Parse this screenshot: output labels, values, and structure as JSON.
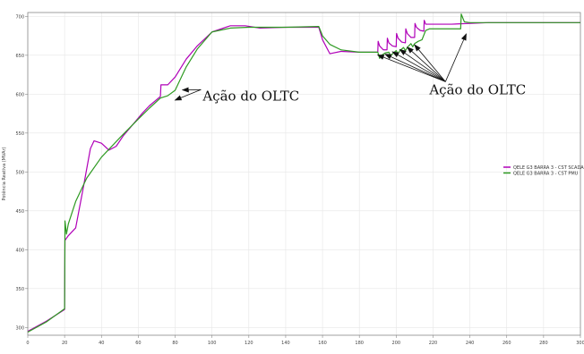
{
  "chart_data": {
    "type": "line",
    "title": "",
    "xlabel": "",
    "ylabel": "Potência Reativa (MVAr)",
    "xlim": [
      0,
      300
    ],
    "ylim": [
      290,
      705
    ],
    "x_ticks": [
      0,
      20,
      40,
      60,
      80,
      100,
      120,
      140,
      160,
      180,
      200,
      220,
      240,
      260,
      280,
      300
    ],
    "y_ticks": [
      300,
      350,
      400,
      450,
      500,
      550,
      600,
      650,
      700
    ],
    "grid": true,
    "legend_position": "right",
    "series": [
      {
        "name": "QELE G3 BARRA 3 - CST SCADA",
        "color": "#b000b8",
        "points": [
          [
            0,
            295
          ],
          [
            10,
            308
          ],
          [
            20,
            323
          ],
          [
            20.2,
            412
          ],
          [
            22,
            418
          ],
          [
            26,
            428
          ],
          [
            30,
            478
          ],
          [
            34,
            530
          ],
          [
            36,
            540
          ],
          [
            40,
            537
          ],
          [
            44,
            528
          ],
          [
            48,
            533
          ],
          [
            52,
            547
          ],
          [
            56,
            558
          ],
          [
            62,
            575
          ],
          [
            66,
            585
          ],
          [
            72,
            597
          ],
          [
            72.3,
            612
          ],
          [
            76,
            612
          ],
          [
            80,
            622
          ],
          [
            86,
            645
          ],
          [
            92,
            662
          ],
          [
            100,
            680
          ],
          [
            110,
            688
          ],
          [
            118,
            688
          ],
          [
            126,
            685
          ],
          [
            140,
            686
          ],
          [
            158,
            686
          ],
          [
            160,
            670
          ],
          [
            164,
            652
          ],
          [
            170,
            655
          ],
          [
            180,
            654
          ],
          [
            190,
            654
          ],
          [
            190.2,
            668
          ],
          [
            191,
            662
          ],
          [
            193,
            657
          ],
          [
            195,
            657
          ],
          [
            195.2,
            672
          ],
          [
            196,
            666
          ],
          [
            198,
            662
          ],
          [
            200,
            661
          ],
          [
            200.2,
            678
          ],
          [
            201,
            672
          ],
          [
            203,
            667
          ],
          [
            205,
            666
          ],
          [
            205.2,
            684
          ],
          [
            206,
            678
          ],
          [
            208,
            673
          ],
          [
            210,
            673
          ],
          [
            210.2,
            691
          ],
          [
            211,
            686
          ],
          [
            213,
            682
          ],
          [
            215,
            681
          ],
          [
            215.2,
            695
          ],
          [
            216,
            690
          ],
          [
            218,
            690
          ],
          [
            230,
            690
          ],
          [
            250,
            692
          ],
          [
            300,
            692
          ]
        ]
      },
      {
        "name": "QELE G3 BARRA 3 - CST PMU",
        "color": "#2e9a22",
        "points": [
          [
            0,
            294
          ],
          [
            10,
            307
          ],
          [
            20,
            324
          ],
          [
            20.2,
            437
          ],
          [
            21,
            420
          ],
          [
            22,
            433
          ],
          [
            26,
            462
          ],
          [
            32,
            492
          ],
          [
            40,
            519
          ],
          [
            50,
            544
          ],
          [
            60,
            568
          ],
          [
            66,
            582
          ],
          [
            72,
            595
          ],
          [
            76,
            598
          ],
          [
            80,
            605
          ],
          [
            82,
            615
          ],
          [
            86,
            635
          ],
          [
            92,
            658
          ],
          [
            100,
            680
          ],
          [
            110,
            685
          ],
          [
            120,
            686
          ],
          [
            130,
            686
          ],
          [
            140,
            686
          ],
          [
            158,
            687
          ],
          [
            160,
            675
          ],
          [
            164,
            664
          ],
          [
            170,
            657
          ],
          [
            180,
            654
          ],
          [
            190,
            654
          ],
          [
            191,
            646
          ],
          [
            192,
            650
          ],
          [
            194,
            653
          ],
          [
            196,
            654
          ],
          [
            197,
            649
          ],
          [
            198,
            652
          ],
          [
            200,
            656
          ],
          [
            201,
            652
          ],
          [
            202,
            656
          ],
          [
            204,
            660
          ],
          [
            205,
            656
          ],
          [
            206,
            660
          ],
          [
            208,
            665
          ],
          [
            209,
            661
          ],
          [
            210,
            665
          ],
          [
            212,
            668
          ],
          [
            214,
            670
          ],
          [
            216,
            682
          ],
          [
            218,
            684
          ],
          [
            225,
            684
          ],
          [
            235,
            684
          ],
          [
            235.3,
            703
          ],
          [
            237,
            693
          ],
          [
            240,
            692
          ],
          [
            260,
            692
          ],
          [
            300,
            692
          ]
        ]
      }
    ],
    "annotations": [
      {
        "text": "Ação do OLTC",
        "anchor": [
          95,
          592
        ],
        "arrow_targets": [
          [
            80,
            597
          ],
          [
            84,
            610
          ]
        ]
      },
      {
        "text": "Ação do OLTC",
        "anchor": [
          218,
          600
        ],
        "arrow_targets": [
          [
            190,
            655
          ],
          [
            194,
            656
          ],
          [
            198,
            659
          ],
          [
            202,
            662
          ],
          [
            206,
            665
          ],
          [
            210,
            668
          ],
          [
            238,
            682
          ]
        ]
      }
    ]
  }
}
